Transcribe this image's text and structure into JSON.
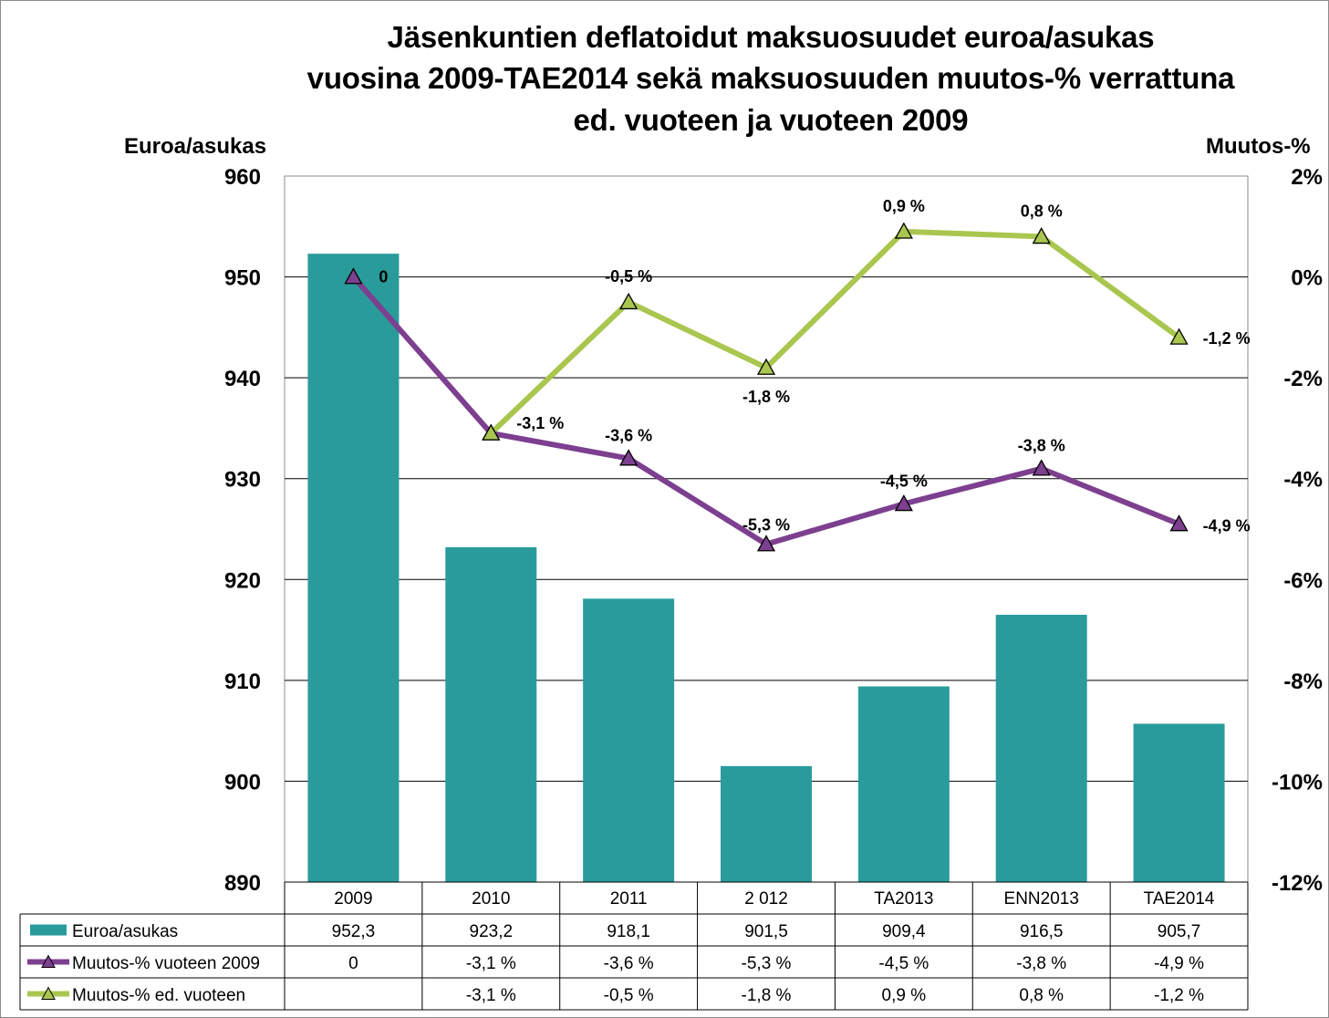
{
  "chart_data": {
    "type": "bar",
    "title_lines": [
      "Jäsenkuntien deflatoidut maksuosuudet euroa/asukas",
      "vuosina 2009-TAE2014 sekä maksuosuuden muutos-% verrattuna",
      "ed. vuoteen ja vuoteen 2009"
    ],
    "ylabel_left": "Euroa/asukas",
    "ylabel_right": "Muutos-%",
    "ylim_left": [
      890,
      960
    ],
    "ylim_right": [
      -12,
      2
    ],
    "yticks_left": [
      "960",
      "950",
      "940",
      "930",
      "920",
      "910",
      "900",
      "890"
    ],
    "yticks_right": [
      "2%",
      "0%",
      "-2%",
      "-4%",
      "-6%",
      "-8%",
      "-10%",
      "-12%"
    ],
    "categories": [
      "2009",
      "2010",
      "2011",
      "2 012",
      "TA2013",
      "ENN2013",
      "TAE2014"
    ],
    "series": [
      {
        "name": "Euroa/asukas",
        "kind": "bar",
        "axis": "left",
        "color": "#2a9b9b",
        "values": [
          952.3,
          923.2,
          918.1,
          901.5,
          909.4,
          916.5,
          905.7
        ],
        "table_cells": [
          "952,3",
          "923,2",
          "918,1",
          "901,5",
          "909,4",
          "916,5",
          "905,7"
        ]
      },
      {
        "name": "Muutos-% vuoteen 2009",
        "kind": "line",
        "axis": "right",
        "color": "#7d3f8f",
        "values": [
          0,
          -3.1,
          -3.6,
          -5.3,
          -4.5,
          -3.8,
          -4.9
        ],
        "point_labels": [
          "0",
          "-3,1 %",
          "-3,6 %",
          "-5,3 %",
          "-4,5 %",
          "-3,8 %",
          "-4,9 %"
        ],
        "table_cells": [
          "0",
          "-3,1 %",
          "-3,6 %",
          "-5,3 %",
          "-4,5 %",
          "-3,8 %",
          "-4,9 %"
        ]
      },
      {
        "name": "Muutos-% ed. vuoteen",
        "kind": "line",
        "axis": "right",
        "color": "#a9c64f",
        "values": [
          null,
          -3.1,
          -0.5,
          -1.8,
          0.9,
          0.8,
          -1.2
        ],
        "point_labels": [
          "",
          "",
          "-0,5 %",
          "-1,8 %",
          "0,9 %",
          "0,8 %",
          "-1,2 %"
        ],
        "table_cells": [
          "",
          "-3,1 %",
          "-0,5 %",
          "-1,8 %",
          "0,9 %",
          "0,8 %",
          "-1,2 %"
        ]
      }
    ],
    "gridlines": true,
    "legend": "data-table-below"
  }
}
